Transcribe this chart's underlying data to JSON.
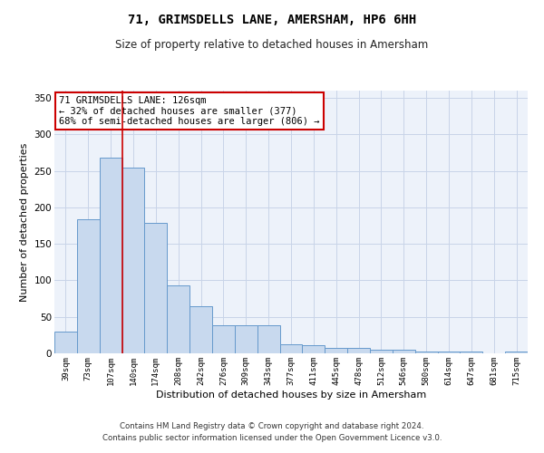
{
  "title": "71, GRIMSDELLS LANE, AMERSHAM, HP6 6HH",
  "subtitle": "Size of property relative to detached houses in Amersham",
  "xlabel": "Distribution of detached houses by size in Amersham",
  "ylabel": "Number of detached properties",
  "categories": [
    "39sqm",
    "73sqm",
    "107sqm",
    "140sqm",
    "174sqm",
    "208sqm",
    "242sqm",
    "276sqm",
    "309sqm",
    "343sqm",
    "377sqm",
    "411sqm",
    "445sqm",
    "478sqm",
    "512sqm",
    "546sqm",
    "580sqm",
    "614sqm",
    "647sqm",
    "681sqm",
    "715sqm"
  ],
  "values": [
    30,
    184,
    268,
    254,
    179,
    93,
    65,
    39,
    39,
    38,
    12,
    11,
    8,
    8,
    5,
    5,
    3,
    3,
    3,
    0,
    3
  ],
  "bar_color": "#c8d9ee",
  "bar_edge_color": "#6699cc",
  "grid_color": "#c8d4e8",
  "bg_color": "#edf2fa",
  "red_line_index": 2,
  "annotation_text": "71 GRIMSDELLS LANE: 126sqm\n← 32% of detached houses are smaller (377)\n68% of semi-detached houses are larger (806) →",
  "annotation_box_edge": "#cc0000",
  "footer": "Contains HM Land Registry data © Crown copyright and database right 2024.\nContains public sector information licensed under the Open Government Licence v3.0.",
  "ylim": [
    0,
    360
  ],
  "yticks": [
    0,
    50,
    100,
    150,
    200,
    250,
    300,
    350
  ]
}
